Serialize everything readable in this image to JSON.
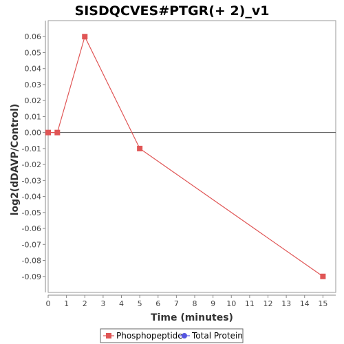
{
  "chart_data": {
    "type": "line",
    "title": "SISDQCVES#PTGR(+ 2)_v1",
    "xlabel": "Time (minutes)",
    "ylabel": "log2(dDAVP/Control)",
    "xlim": [
      0,
      15.7
    ],
    "ylim": [
      -0.1,
      0.07
    ],
    "x_ticks": [
      0,
      1,
      2,
      3,
      4,
      5,
      6,
      7,
      8,
      9,
      10,
      11,
      12,
      13,
      14,
      15
    ],
    "y_ticks": [
      0.06,
      0.05,
      0.04,
      0.03,
      0.02,
      0.01,
      0.0,
      -0.01,
      -0.02,
      -0.03,
      -0.04,
      -0.05,
      -0.06,
      -0.07,
      -0.08,
      -0.09
    ],
    "y_tick_labels": [
      "0.06",
      "0.05",
      "0.04",
      "0.03",
      "0.02",
      "0.01",
      "0.00",
      "-0.01",
      "-0.02",
      "-0.03",
      "-0.04",
      "-0.05",
      "-0.06",
      "-0.07",
      "-0.08",
      "-0.09"
    ],
    "grid": false,
    "zero_line": true,
    "legend_position": "bottom",
    "series": [
      {
        "name": "Phosphopeptide",
        "color": "#e05555",
        "marker": "square",
        "points": [
          {
            "x": 0,
            "y": 0.0
          },
          {
            "x": 0.5,
            "y": 0.0
          },
          {
            "x": 2,
            "y": 0.06
          },
          {
            "x": 5,
            "y": -0.01
          },
          {
            "x": 15,
            "y": -0.09
          }
        ]
      },
      {
        "name": "Total Protein",
        "color": "#5555e0",
        "marker": "circle",
        "points": []
      }
    ]
  }
}
